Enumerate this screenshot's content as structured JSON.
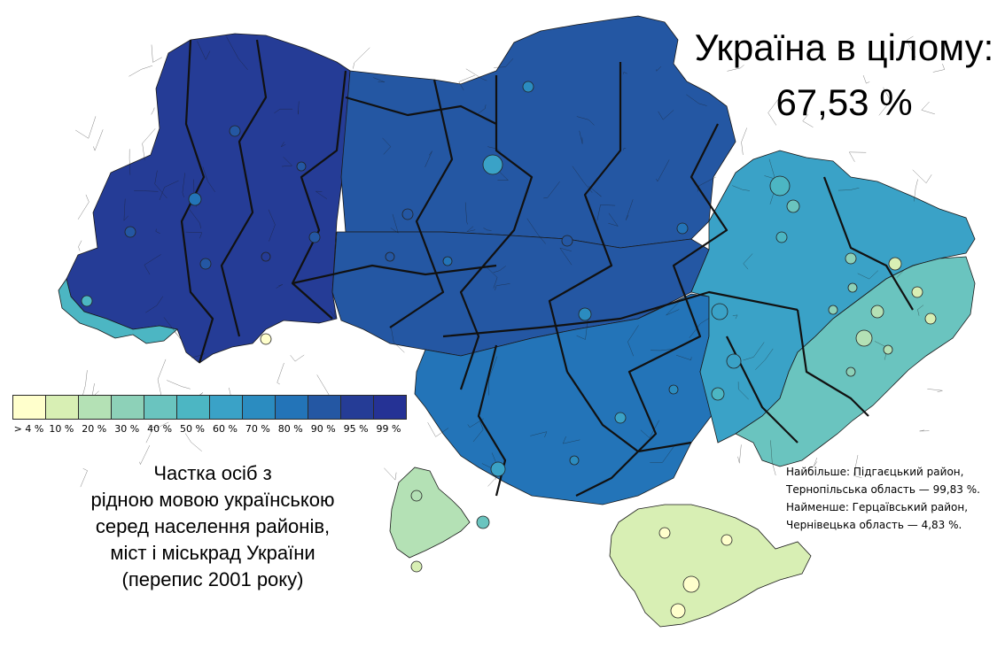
{
  "headline": {
    "title": "Україна в цілому:",
    "value": "67,53 %"
  },
  "legend": {
    "colors": [
      "#ffffcc",
      "#d8efb4",
      "#b4e1b5",
      "#8dd1b8",
      "#6ac4bf",
      "#4cb6c3",
      "#3aa2c7",
      "#2b8cc0",
      "#2374b8",
      "#2457a3",
      "#253c96",
      "#253295"
    ],
    "labels": [
      "> 4 %",
      "10 %",
      "20 %",
      "30 %",
      "40 %",
      "50 %",
      "60 %",
      "70 %",
      "80 %",
      "90 %",
      "95 %",
      "99 %"
    ]
  },
  "caption": [
    "Частка осіб з",
    "рідною мовою українською",
    "серед населення районів,",
    "міст і міськрад України",
    "(перепис 2001 року)"
  ],
  "extremes": [
    "Найбільше: Підгаєцький район,",
    "Тернопільська область — 99,83 %.",
    "Найменше: Герцаївський район,",
    "Чернівецька область — 4,83 %."
  ],
  "map": {
    "border_color": "#1a1a1a",
    "regions": [
      {
        "name": "west",
        "level": 10
      },
      {
        "name": "north",
        "level": 9
      },
      {
        "name": "center",
        "level": 9
      },
      {
        "name": "south-center",
        "level": 8
      },
      {
        "name": "east",
        "level": 6
      },
      {
        "name": "donbas",
        "level": 4
      },
      {
        "name": "crimea",
        "level": 1
      },
      {
        "name": "bessarabia",
        "level": 2
      },
      {
        "name": "transcarpathia",
        "level": 5
      }
    ]
  }
}
